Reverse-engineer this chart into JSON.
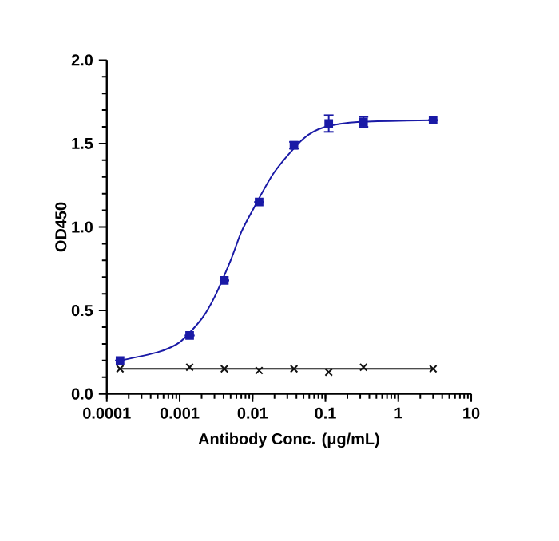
{
  "chart_data": {
    "type": "scatter",
    "xlabel": "Antibody Conc. (μg/mL)",
    "ylabel": "OD450",
    "log": "x",
    "xlim": [
      0.0001,
      10
    ],
    "xticks": [
      0.0001,
      0.001,
      0.01,
      0.1,
      1,
      10
    ],
    "ylim": [
      0,
      2
    ],
    "yticks": [
      {
        "value": 0,
        "label": "0.0"
      },
      {
        "value": 0.5,
        "label": "0.5"
      },
      {
        "value": 1,
        "label": "1.0"
      },
      {
        "value": 1.5,
        "label": "1.5"
      },
      {
        "value": 2,
        "label": "2.0"
      }
    ],
    "grid": false,
    "series": [
      {
        "type": "scatter",
        "marker": "square",
        "color": "#1a1aa6",
        "x": [
          0.000152,
          0.00137,
          0.0041,
          0.0123,
          0.037,
          0.111,
          0.333,
          3
        ],
        "values": [
          0.2,
          0.35,
          0.68,
          1.15,
          1.49,
          1.62,
          1.63,
          1.64
        ],
        "errors": [
          null,
          null,
          null,
          null,
          0.02,
          0.05,
          0.03,
          null
        ]
      },
      {
        "type": "line",
        "marker": "none",
        "color": "#1a1aa6",
        "x": [
          0.000152,
          0.0005,
          0.001,
          0.002,
          0.003,
          0.005,
          0.007,
          0.01,
          0.02,
          0.05,
          0.1,
          0.3,
          3
        ],
        "values": [
          0.2,
          0.25,
          0.31,
          0.45,
          0.58,
          0.8,
          0.97,
          1.1,
          1.33,
          1.53,
          1.6,
          1.63,
          1.64
        ]
      },
      {
        "type": "scatter",
        "marker": "cross",
        "color": "#111111",
        "x": [
          0.000152,
          0.00137,
          0.0041,
          0.0123,
          0.037,
          0.111,
          0.333,
          3
        ],
        "values": [
          0.15,
          0.16,
          0.15,
          0.14,
          0.15,
          0.13,
          0.16,
          0.15
        ]
      },
      {
        "type": "line",
        "marker": "none",
        "color": "#111111",
        "x": [
          0.000152,
          3
        ],
        "values": [
          0.15,
          0.15
        ]
      }
    ]
  }
}
